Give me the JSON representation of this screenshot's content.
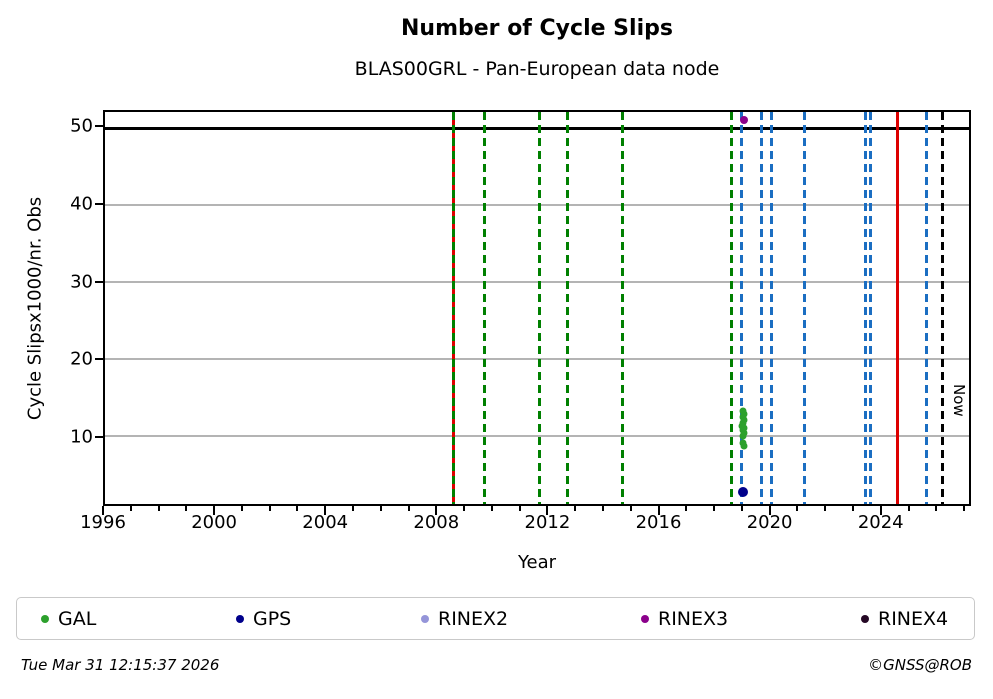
{
  "title": "Number of Cycle Slips",
  "subtitle": "BLAS00GRL - Pan-European data node",
  "footer": {
    "timestamp": "Tue Mar 31 12:15:37 2026",
    "credit": "©GNSS@ROB"
  },
  "colors": {
    "green_line": "#008000",
    "blue_line": "#1b6ec2",
    "red_line": "#dd0000",
    "black_line": "#000000",
    "grid": "#b4b4b4",
    "gal": "#2ca02c",
    "gps": "#00008b",
    "rinex2": "#9595d9",
    "rinex3": "#8b008b",
    "rinex4": "#250825"
  },
  "legend": [
    {
      "label": "GAL",
      "color": "#2ca02c"
    },
    {
      "label": "GPS",
      "color": "#00008b"
    },
    {
      "label": "RINEX2",
      "color": "#9595d9"
    },
    {
      "label": "RINEX3",
      "color": "#8b008b"
    },
    {
      "label": "RINEX4",
      "color": "#250825"
    }
  ],
  "chart_data": {
    "type": "scatter",
    "title": "Number of Cycle Slips",
    "subtitle": "BLAS00GRL - Pan-European data node",
    "xlabel": "Year",
    "ylabel": "Cycle Slipsx1000/nr. Obs",
    "xlim": [
      1996,
      2027.25
    ],
    "ylim": [
      1.1,
      52.1
    ],
    "xticks": [
      1996,
      2000,
      2004,
      2008,
      2012,
      2016,
      2020,
      2024
    ],
    "yticks": [
      10,
      20,
      30,
      40,
      50
    ],
    "minor_xtick_step": 1,
    "grid": "horizontal",
    "legend_position": "bottom",
    "hline": {
      "y": 50,
      "color": "#000000"
    },
    "vlines": [
      {
        "x": 2008.6,
        "color": "#dd0000",
        "style": "solid"
      },
      {
        "x": 2008.6,
        "color": "#008000",
        "style": "dashed"
      },
      {
        "x": 2009.72,
        "color": "#008000",
        "style": "dashed"
      },
      {
        "x": 2011.72,
        "color": "#008000",
        "style": "dashed"
      },
      {
        "x": 2012.74,
        "color": "#008000",
        "style": "dashed"
      },
      {
        "x": 2014.72,
        "color": "#008000",
        "style": "dashed"
      },
      {
        "x": 2018.66,
        "color": "#008000",
        "style": "dashed"
      },
      {
        "x": 2019.01,
        "color": "#1b6ec2",
        "style": "dashed"
      },
      {
        "x": 2019.76,
        "color": "#1b6ec2",
        "style": "dashed"
      },
      {
        "x": 2020.12,
        "color": "#1b6ec2",
        "style": "dashed"
      },
      {
        "x": 2021.29,
        "color": "#1b6ec2",
        "style": "dashed"
      },
      {
        "x": 2023.51,
        "color": "#1b6ec2",
        "style": "dashed"
      },
      {
        "x": 2023.68,
        "color": "#1b6ec2",
        "style": "dashed"
      },
      {
        "x": 2024.65,
        "color": "#dd0000",
        "style": "solid"
      },
      {
        "x": 2025.73,
        "color": "#1b6ec2",
        "style": "dashed"
      }
    ],
    "now": {
      "x": 2026.3,
      "label": "Now",
      "color": "#000000",
      "style": "dashed"
    },
    "series": [
      {
        "name": "GAL",
        "color": "#2ca02c",
        "marker_px": 7,
        "points": [
          [
            2019.07,
            13.2
          ],
          [
            2019.1,
            12.8
          ],
          [
            2019.06,
            12.4
          ],
          [
            2019.11,
            12.0
          ],
          [
            2019.08,
            11.7
          ],
          [
            2019.05,
            11.3
          ],
          [
            2019.1,
            11.0
          ],
          [
            2019.07,
            10.7
          ],
          [
            2019.12,
            10.3
          ],
          [
            2019.08,
            9.9
          ],
          [
            2019.06,
            9.1
          ],
          [
            2019.1,
            8.7
          ]
        ]
      },
      {
        "name": "GPS",
        "color": "#00008b",
        "marker_px": 10,
        "points": [
          [
            2019.08,
            2.6
          ]
        ]
      },
      {
        "name": "RINEX2",
        "color": "#9595d9",
        "marker_px": 8,
        "points": []
      },
      {
        "name": "RINEX3",
        "color": "#8b008b",
        "marker_px": 8,
        "points": [
          [
            2019.1,
            51.0
          ]
        ]
      },
      {
        "name": "RINEX4",
        "color": "#250825",
        "marker_px": 8,
        "points": []
      }
    ]
  }
}
